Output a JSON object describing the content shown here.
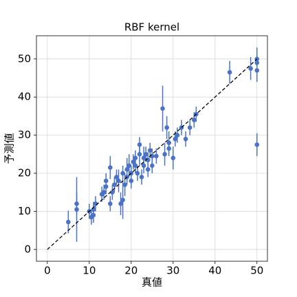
{
  "chart_data": {
    "type": "scatter",
    "title": "RBF kernel",
    "x_label": "真値",
    "y_label": "予測値",
    "color": "#4a72c8",
    "xlim": [
      -2.6,
      52.5
    ],
    "ylim": [
      -3.1,
      56.1
    ],
    "xticks": [
      0,
      10,
      20,
      30,
      40,
      50
    ],
    "yticks": [
      0,
      10,
      20,
      30,
      40,
      50
    ],
    "grid": true,
    "reference_line": {
      "x": [
        0,
        50
      ],
      "y": [
        0,
        50
      ]
    },
    "x": [
      5,
      7,
      7,
      10,
      10.5,
      11,
      11,
      11.5,
      13,
      13.5,
      14,
      14,
      15,
      15,
      15.5,
      16,
      16.5,
      17,
      17.5,
      18,
      18,
      18.5,
      19,
      19,
      19.5,
      20,
      20,
      20.5,
      21,
      21,
      21.5,
      22,
      22,
      22.5,
      23,
      23,
      23.5,
      24,
      24,
      24.5,
      25,
      25,
      26,
      27.5,
      28,
      28.5,
      29,
      29,
      30,
      30.5,
      31,
      32,
      33,
      34,
      35,
      35.5,
      43.5,
      48.5,
      50,
      50,
      50,
      50
    ],
    "values": [
      7.2,
      12,
      10.5,
      10,
      8.5,
      9,
      10.5,
      12,
      14.5,
      15,
      18,
      16.5,
      21.5,
      12,
      15,
      17,
      19,
      18,
      12,
      13,
      20,
      17,
      21,
      19,
      22,
      20,
      18,
      23,
      22,
      24,
      20,
      27.5,
      25,
      19,
      24,
      22,
      25,
      21,
      23.5,
      26,
      22,
      24.5,
      24.5,
      37,
      25,
      32,
      28,
      26.5,
      24,
      29,
      30,
      32,
      29,
      32,
      34,
      35.5,
      46.5,
      47.5,
      50,
      47,
      27.5,
      49
    ],
    "errors": [
      3,
      3,
      8.5,
      2,
      2,
      2,
      2,
      2,
      2,
      2,
      2,
      2,
      3,
      2,
      2,
      2,
      2,
      3,
      3,
      5,
      2,
      3,
      3,
      2,
      3,
      2,
      2,
      2,
      2,
      2,
      2,
      2,
      3,
      2,
      3,
      2,
      2,
      2,
      2,
      2,
      2,
      2,
      2,
      6,
      3,
      3,
      3,
      2,
      3,
      2,
      2,
      2,
      2,
      2,
      2,
      2,
      3,
      3,
      3,
      3,
      3,
      2
    ]
  }
}
